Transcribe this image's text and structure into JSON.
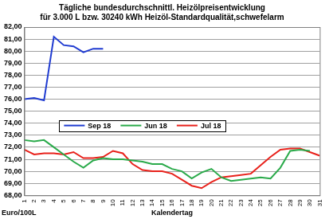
{
  "chart_data": {
    "type": "line",
    "title": "Tägliche bundesdurchschnittl. Heizölpreisentwicklung",
    "subtitle": "für 3.000 L bzw. 30240 kWh Heizöl-Standardqualität,schwefelarm",
    "x_label": "Kalendertag",
    "y_label": "Euro/100L",
    "categories": [
      "1",
      "2",
      "3",
      "4",
      "5",
      "6",
      "7",
      "8",
      "9",
      "10",
      "11",
      "12",
      "13",
      "14",
      "15",
      "16",
      "17",
      "18",
      "19",
      "20",
      "21",
      "22",
      "23",
      "24",
      "25",
      "26",
      "27",
      "28",
      "29",
      "30",
      "31"
    ],
    "series": [
      {
        "name": "Sep 18",
        "color": "#1f3bd1",
        "values": [
          76.0,
          76.1,
          75.9,
          81.2,
          80.5,
          80.4,
          79.9,
          80.2,
          80.2,
          null,
          null,
          null,
          null,
          null,
          null,
          null,
          null,
          null,
          null,
          null,
          null,
          null,
          null,
          null,
          null,
          null,
          null,
          null,
          null,
          null,
          null
        ]
      },
      {
        "name": "Jun 18",
        "color": "#2aaa4a",
        "values": [
          72.6,
          72.5,
          72.6,
          72.0,
          71.4,
          70.8,
          70.3,
          70.9,
          71.1,
          71.0,
          71.0,
          70.9,
          70.8,
          70.6,
          70.6,
          70.2,
          70.0,
          69.4,
          69.9,
          70.2,
          69.5,
          69.2,
          69.3,
          69.4,
          69.5,
          69.4,
          70.3,
          71.7,
          71.8,
          71.7,
          null
        ]
      },
      {
        "name": "Jul 18",
        "color": "#e8211b",
        "values": [
          71.8,
          71.4,
          71.5,
          71.5,
          71.4,
          71.6,
          71.1,
          71.1,
          71.2,
          71.7,
          71.5,
          70.6,
          70.1,
          70.0,
          70.0,
          69.8,
          69.3,
          68.8,
          68.6,
          69.1,
          69.5,
          69.6,
          69.7,
          69.8,
          70.5,
          71.2,
          71.8,
          71.9,
          71.9,
          71.6,
          71.3
        ]
      }
    ],
    "ylim": [
      68,
      82
    ],
    "yticks": [
      {
        "value": 68,
        "label": "68,00"
      },
      {
        "value": 69,
        "label": "69,00"
      },
      {
        "value": 70,
        "label": "70,00"
      },
      {
        "value": 71,
        "label": "71,00"
      },
      {
        "value": 72,
        "label": "72,00"
      },
      {
        "value": 73,
        "label": "73,00"
      },
      {
        "value": 74,
        "label": "74,00"
      },
      {
        "value": 75,
        "label": "75,00"
      },
      {
        "value": 76,
        "label": "76,00"
      },
      {
        "value": 77,
        "label": "77,00"
      },
      {
        "value": 78,
        "label": "78,00"
      },
      {
        "value": 79,
        "label": "79,00"
      },
      {
        "value": 80,
        "label": "80,00"
      },
      {
        "value": 81,
        "label": "81,00"
      },
      {
        "value": 82,
        "label": "82,00"
      }
    ],
    "grid": true,
    "legend": "center"
  }
}
